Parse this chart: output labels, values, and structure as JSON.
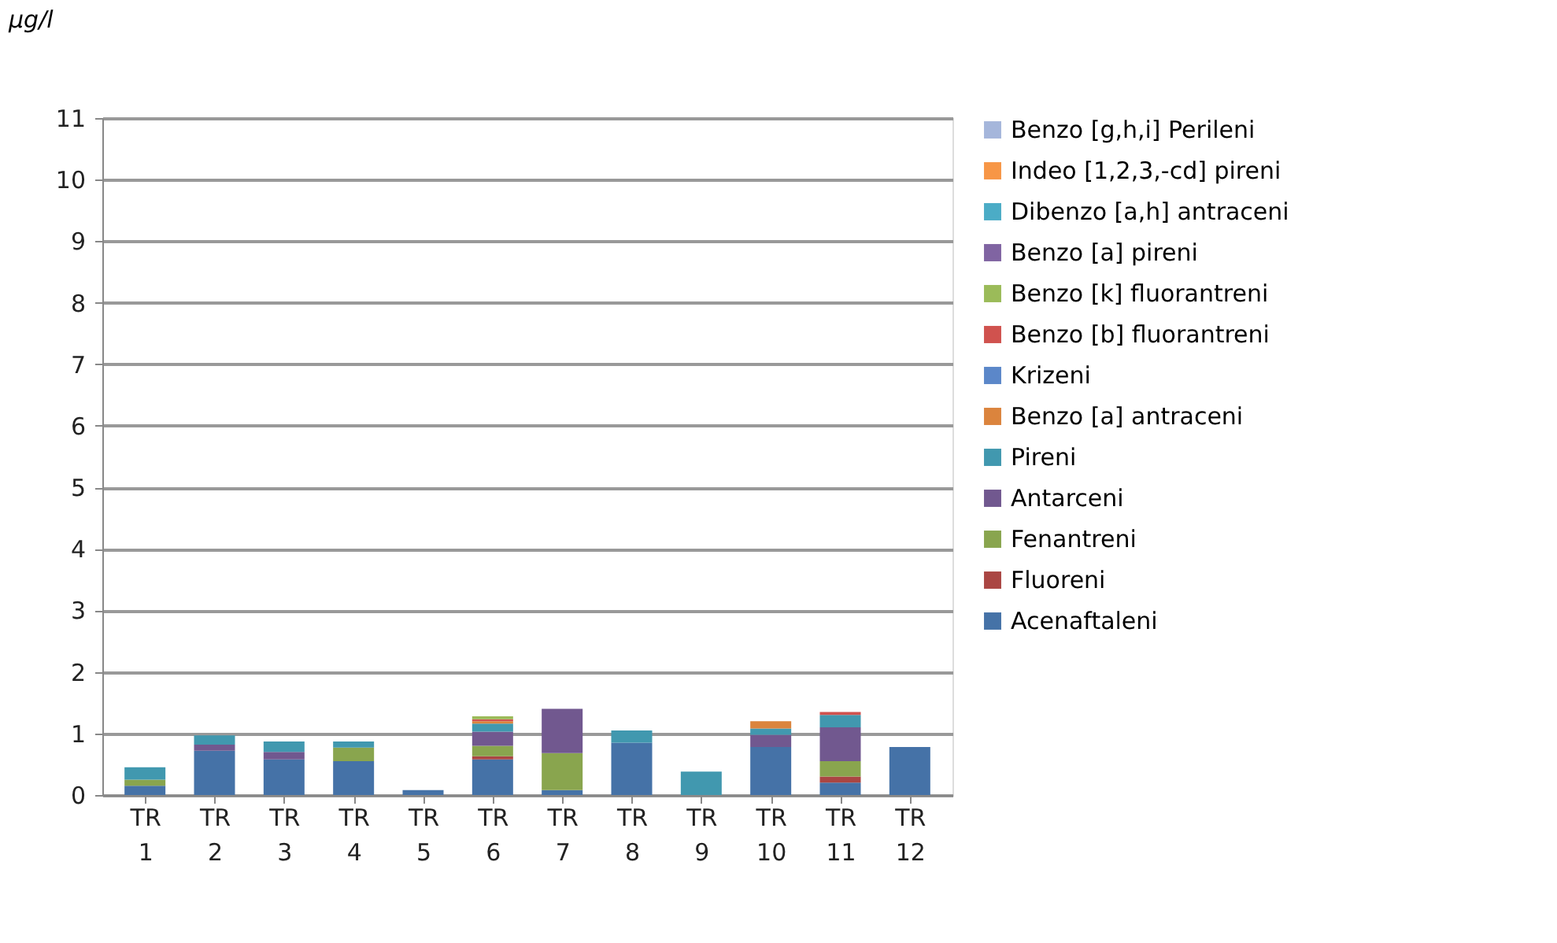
{
  "chart_data": {
    "type": "bar",
    "stacked": true,
    "ylabel": "µg/l",
    "categories": [
      "TR 1",
      "TR 2",
      "TR 3",
      "TR 4",
      "TR 5",
      "TR 6",
      "TR 7",
      "TR 8",
      "TR 9",
      "TR 10",
      "TR 11",
      "TR 12"
    ],
    "ylim": [
      0,
      11
    ],
    "yticks": [
      0,
      1,
      2,
      3,
      4,
      5,
      6,
      7,
      8,
      9,
      10,
      11
    ],
    "grid": "y",
    "legend": "right",
    "series": [
      {
        "name": "Acenaftaleni",
        "color": "#4572a7",
        "values": [
          0.15,
          0.72,
          0.58,
          0.55,
          0.08,
          0.58,
          0.08,
          0.85,
          null,
          0.78,
          0.2,
          0.78
        ]
      },
      {
        "name": "Fluoreni",
        "color": "#aa4643",
        "values": [
          null,
          null,
          null,
          null,
          null,
          0.05,
          null,
          null,
          null,
          null,
          0.1,
          null
        ]
      },
      {
        "name": "Fenantreni",
        "color": "#89a54e",
        "values": [
          0.1,
          null,
          null,
          0.22,
          null,
          0.17,
          0.6,
          null,
          null,
          null,
          0.25,
          null
        ]
      },
      {
        "name": "Antarceni",
        "color": "#71588f",
        "values": [
          null,
          0.1,
          0.12,
          null,
          null,
          0.23,
          0.72,
          null,
          null,
          0.2,
          0.55,
          null
        ]
      },
      {
        "name": "Pireni",
        "color": "#4198af",
        "values": [
          0.2,
          0.15,
          0.17,
          0.1,
          null,
          0.13,
          null,
          0.2,
          0.38,
          0.1,
          0.2,
          null
        ]
      },
      {
        "name": "Benzo [a] antraceni",
        "color": "#db843d",
        "values": [
          null,
          null,
          null,
          null,
          null,
          0.04,
          null,
          null,
          null,
          0.12,
          null,
          null
        ]
      },
      {
        "name": "Krizeni",
        "color": "#5b87c9",
        "values": [
          null,
          null,
          null,
          null,
          null,
          null,
          null,
          null,
          null,
          null,
          null,
          null
        ]
      },
      {
        "name": "Benzo [b] fluorantreni",
        "color": "#d0524e",
        "values": [
          null,
          null,
          null,
          null,
          null,
          0.03,
          null,
          null,
          null,
          null,
          0.05,
          null
        ]
      },
      {
        "name": "Benzo [k] fluorantreni",
        "color": "#9bbb59",
        "values": [
          null,
          null,
          null,
          null,
          null,
          0.05,
          null,
          null,
          null,
          null,
          null,
          null
        ]
      },
      {
        "name": "Benzo [a] pireni",
        "color": "#8064a2",
        "values": [
          null,
          null,
          null,
          null,
          null,
          null,
          null,
          null,
          null,
          null,
          null,
          null
        ]
      },
      {
        "name": "Dibenzo [a,h] antraceni",
        "color": "#4bacc6",
        "values": [
          null,
          null,
          null,
          null,
          null,
          null,
          null,
          null,
          null,
          null,
          null,
          null
        ]
      },
      {
        "name": "Indeo [1,2,3,-cd] pireni",
        "color": "#f79646",
        "values": [
          null,
          null,
          null,
          null,
          null,
          null,
          null,
          null,
          null,
          null,
          null,
          null
        ]
      },
      {
        "name": "Benzo [g,h,i] Perileni",
        "color": "#a5b6db",
        "values": [
          null,
          null,
          null,
          null,
          null,
          null,
          null,
          null,
          null,
          null,
          null,
          null
        ]
      }
    ]
  }
}
